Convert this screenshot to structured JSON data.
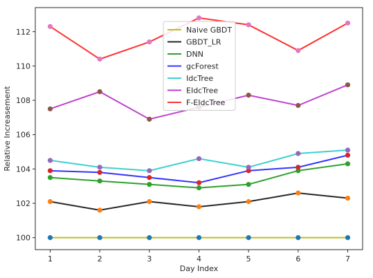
{
  "chart_data": {
    "type": "line",
    "title": "",
    "xlabel": "Day Index",
    "ylabel": "Relative Increasement",
    "x": [
      1,
      2,
      3,
      4,
      5,
      6,
      7
    ],
    "xlim": [
      0.7,
      7.3
    ],
    "ylim": [
      99.3,
      113.4
    ],
    "xticks": [
      1,
      2,
      3,
      4,
      5,
      6,
      7
    ],
    "yticks": [
      100,
      102,
      104,
      106,
      108,
      110,
      112
    ],
    "grid": false,
    "legend_position": "top-center",
    "series": [
      {
        "name": "Naive GBDT",
        "color": "#bcbd22",
        "marker_color": "#1f77b4",
        "values": [
          100,
          100,
          100,
          100,
          100,
          100,
          100
        ]
      },
      {
        "name": "GBDT_LR",
        "color": "#262626",
        "marker_color": "#ff7f0e",
        "values": [
          102.1,
          101.6,
          102.1,
          101.8,
          102.1,
          102.6,
          102.3
        ]
      },
      {
        "name": "DNN",
        "color": "#2ca02c",
        "marker_color": "#2ca02c",
        "values": [
          103.5,
          103.3,
          103.1,
          102.9,
          103.1,
          103.9,
          104.3
        ]
      },
      {
        "name": "gcForest",
        "color": "#3333ff",
        "marker_color": "#d62728",
        "values": [
          103.9,
          103.8,
          103.5,
          103.2,
          103.9,
          104.1,
          104.8
        ]
      },
      {
        "name": "IdcTree",
        "color": "#3ecfcf",
        "marker_color": "#9467bd",
        "values": [
          104.5,
          104.1,
          103.9,
          104.6,
          104.1,
          104.9,
          105.1
        ]
      },
      {
        "name": "EIdcTree",
        "color": "#c03fcf",
        "marker_color": "#8c564b",
        "values": [
          107.5,
          108.5,
          106.9,
          107.6,
          108.3,
          107.7,
          108.9
        ]
      },
      {
        "name": "F-EIdcTree",
        "color": "#ff3030",
        "marker_color": "#e377c2",
        "values": [
          112.3,
          110.4,
          111.4,
          112.8,
          112.4,
          110.9,
          112.5
        ]
      }
    ]
  }
}
